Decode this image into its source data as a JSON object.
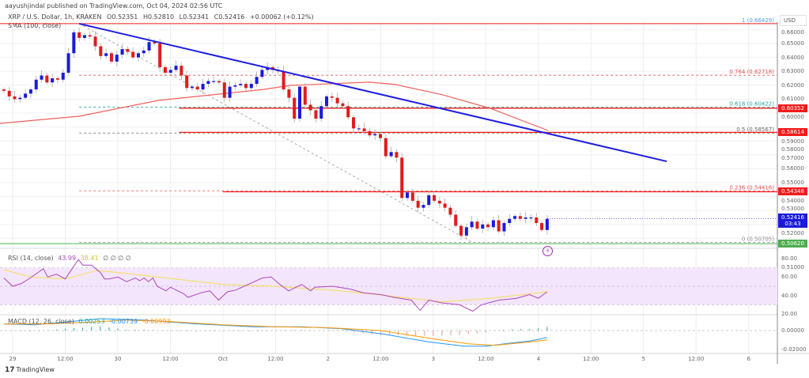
{
  "header": {
    "published": "aayushjindal published on TradingView.com, Oct 04, 2024 02:56 UTC"
  },
  "legend": {
    "symbol": "XRP / U.S. Dollar, 1h, KRAKEN",
    "open": "O0.52351",
    "high": "H0.52810",
    "low": "L0.52341",
    "close": "C0.52416",
    "change": "+0.00062 (+0.12%)",
    "sma": "SMA (100, close)"
  },
  "rsi_legend": {
    "name": "RSI (14, close)",
    "rsi": "43.99",
    "ma": "38.41",
    "extra": "∅ ∅ ∅ ∅"
  },
  "macd_legend": {
    "name": "MACD (12, 26, close)",
    "hist": "0.00253",
    "macd": "-0.00739",
    "signal": "-0.00993"
  },
  "price_axis": {
    "currency": "USD"
  },
  "footer": {
    "logo_mark": "17",
    "brand": "TradingView"
  },
  "icons": {
    "alert": "lightning-icon"
  },
  "colors": {
    "up": "#1a1adb",
    "down": "#e21b1b",
    "sma": "#f0605a",
    "trend": "#1f1fe0",
    "rsi": "#ab47bc",
    "rsi_ma": "#f5e050",
    "macd": "#2196f3",
    "signal": "#ff9800",
    "level": "#f21b1b",
    "current": "#1a1adb",
    "low_line": "#4caf50"
  },
  "chart_data": {
    "type": "candlestick",
    "title": "XRP / U.S. Dollar, 1h, KRAKEN",
    "x_unit": "hours since Sep 29 00:00",
    "x_range": [
      -2,
      172
    ],
    "ylim": [
      0.498,
      0.668
    ],
    "time_ticks": [
      {
        "h": 0,
        "label": "29"
      },
      {
        "h": 12,
        "label": "12:00"
      },
      {
        "h": 24,
        "label": "30"
      },
      {
        "h": 36,
        "label": "12:00"
      },
      {
        "h": 48,
        "label": "Oct"
      },
      {
        "h": 60,
        "label": "12:00"
      },
      {
        "h": 72,
        "label": "2"
      },
      {
        "h": 84,
        "label": "12:00"
      },
      {
        "h": 96,
        "label": "3"
      },
      {
        "h": 108,
        "label": "12:00"
      },
      {
        "h": 120,
        "label": "4"
      },
      {
        "h": 132,
        "label": "12:00"
      },
      {
        "h": 144,
        "label": "5"
      },
      {
        "h": 156,
        "label": "12:00"
      },
      {
        "h": 168,
        "label": "6"
      }
    ],
    "price_ticks": [
      "0.66000",
      "0.65000",
      "0.64000",
      "0.63000",
      "0.62000",
      "0.61000",
      "0.60000",
      "0.59000",
      "0.58000",
      "0.57000",
      "0.56000",
      "0.55000",
      "0.54000",
      "0.53000",
      "0.52000",
      "0.51000",
      "0.50000"
    ],
    "candles_start_h": -2,
    "candles_end_h": 122,
    "first_open": 0.617,
    "closes": [
      0.616,
      0.612,
      0.61,
      0.611,
      0.614,
      0.617,
      0.624,
      0.627,
      0.622,
      0.625,
      0.624,
      0.629,
      0.643,
      0.658,
      0.654,
      0.656,
      0.655,
      0.648,
      0.641,
      0.643,
      0.637,
      0.642,
      0.646,
      0.644,
      0.64,
      0.643,
      0.645,
      0.651,
      0.65,
      0.633,
      0.629,
      0.631,
      0.634,
      0.627,
      0.618,
      0.619,
      0.617,
      0.621,
      0.623,
      0.623,
      0.622,
      0.611,
      0.619,
      0.62,
      0.621,
      0.618,
      0.621,
      0.626,
      0.631,
      0.633,
      0.631,
      0.63,
      0.617,
      0.611,
      0.596,
      0.619,
      0.606,
      0.602,
      0.596,
      0.605,
      0.612,
      0.611,
      0.607,
      0.605,
      0.597,
      0.589,
      0.589,
      0.587,
      0.584,
      0.585,
      0.582,
      0.569,
      0.572,
      0.568,
      0.539,
      0.543,
      0.537,
      0.532,
      0.534,
      0.541,
      0.537,
      0.535,
      0.532,
      0.527,
      0.519,
      0.512,
      0.518,
      0.522,
      0.517,
      0.52,
      0.518,
      0.523,
      0.515,
      0.521,
      0.524,
      0.526,
      0.524,
      0.525,
      0.525,
      0.521,
      0.516,
      0.524
    ],
    "sma_100": [
      [
        -2.9,
        0.5926
      ],
      [
        15.2,
        0.5977
      ],
      [
        33.2,
        0.6091
      ],
      [
        57.2,
        0.617
      ],
      [
        63.4,
        0.6199
      ],
      [
        81.4,
        0.6222
      ],
      [
        87.4,
        0.6205
      ],
      [
        98.2,
        0.6131
      ],
      [
        109,
        0.6034
      ],
      [
        122.2,
        0.5875
      ]
    ],
    "trendline": [
      [
        15.2,
        0.6642
      ],
      [
        149.3,
        0.5653
      ]
    ],
    "fib": {
      "from": [
        15.2,
        0.66429
      ],
      "to": [
        105,
        0.50705
      ],
      "levels": [
        {
          "label": "1 (0.66429)",
          "price": 0.66429,
          "color": "#4fa3e0"
        },
        {
          "label": "0.764 (0.62718)",
          "price": 0.62718,
          "color": "#e05050"
        },
        {
          "label": "0.618 (0.60422)",
          "price": 0.60422,
          "color": "#26a69a"
        },
        {
          "label": "0.5 (0.58567)",
          "price": 0.58567,
          "color": "#666666"
        },
        {
          "label": "0.236 (0.54416)",
          "price": 0.54416,
          "color": "#e05050"
        },
        {
          "label": "0 (0.50705)",
          "price": 0.50705,
          "color": "#888888"
        }
      ]
    },
    "levels": [
      {
        "price": 0.60352,
        "label": "0.60352",
        "from_h": 38
      },
      {
        "price": 0.58614,
        "label": "0.58614",
        "from_h": 38
      },
      {
        "price": 0.54348,
        "label": "0.54348",
        "from_h": 48
      }
    ],
    "current_price": {
      "label": "0.52416",
      "countdown": "03:43",
      "price": 0.52416
    },
    "low_level": {
      "price": 0.5062,
      "label": "0.50620"
    },
    "rsi": {
      "ticks": [
        "80.00",
        "60.00",
        "40.00",
        "20.00"
      ],
      "band": [
        30,
        70
      ],
      "values": [
        [
          -2,
          59
        ],
        [
          0,
          50
        ],
        [
          2,
          53
        ],
        [
          4,
          59
        ],
        [
          7,
          69
        ],
        [
          8,
          60
        ],
        [
          10,
          63
        ],
        [
          12,
          58
        ],
        [
          15,
          79
        ],
        [
          16,
          73
        ],
        [
          18,
          73
        ],
        [
          20,
          65
        ],
        [
          21,
          58
        ],
        [
          22,
          58
        ],
        [
          24,
          60
        ],
        [
          26,
          55
        ],
        [
          28,
          59
        ],
        [
          29,
          56
        ],
        [
          30,
          59
        ],
        [
          31,
          55
        ],
        [
          32,
          59
        ],
        [
          33,
          50
        ],
        [
          35,
          45
        ],
        [
          36,
          49
        ],
        [
          39,
          42
        ],
        [
          40,
          38
        ],
        [
          43,
          43
        ],
        [
          45,
          45
        ],
        [
          47,
          35
        ],
        [
          49,
          44
        ],
        [
          51,
          46
        ],
        [
          57,
          59
        ],
        [
          59,
          60
        ],
        [
          61,
          52
        ],
        [
          63,
          45
        ],
        [
          66,
          52
        ],
        [
          68,
          45
        ],
        [
          69,
          49
        ],
        [
          73,
          50
        ],
        [
          77,
          47
        ],
        [
          80,
          43
        ],
        [
          84,
          41
        ],
        [
          87,
          38
        ],
        [
          91,
          35
        ],
        [
          93,
          24
        ],
        [
          95,
          35
        ],
        [
          98,
          32
        ],
        [
          102,
          30
        ],
        [
          105,
          23
        ],
        [
          107,
          30
        ],
        [
          111,
          35
        ],
        [
          115,
          37
        ],
        [
          118,
          41
        ],
        [
          120,
          37
        ],
        [
          122,
          44
        ]
      ],
      "ma": [
        [
          -2,
          68
        ],
        [
          4,
          60
        ],
        [
          12,
          58
        ],
        [
          19,
          67
        ],
        [
          24,
          65
        ],
        [
          33,
          60
        ],
        [
          48,
          52
        ],
        [
          60,
          50
        ],
        [
          75,
          45
        ],
        [
          87,
          39
        ],
        [
          98,
          33
        ],
        [
          109,
          37
        ],
        [
          122,
          44
        ]
      ]
    },
    "macd": {
      "ticks": [
        "0.00000",
        "-0.02000"
      ],
      "macd": [
        [
          -2,
          0.007
        ],
        [
          5,
          0.006
        ],
        [
          12,
          0.009
        ],
        [
          20,
          0.0125
        ],
        [
          30,
          0.011
        ],
        [
          42,
          0.007
        ],
        [
          55,
          0.004
        ],
        [
          66,
          0.004
        ],
        [
          75,
          0.002
        ],
        [
          85,
          -0.004
        ],
        [
          95,
          -0.012
        ],
        [
          103,
          -0.0165
        ],
        [
          108,
          -0.0165
        ],
        [
          114,
          -0.013
        ],
        [
          118,
          -0.011
        ],
        [
          122,
          -0.0074
        ]
      ],
      "signal": [
        [
          -2,
          0.007
        ],
        [
          8,
          0.007
        ],
        [
          18,
          0.009
        ],
        [
          26,
          0.011
        ],
        [
          36,
          0.0095
        ],
        [
          48,
          0.006
        ],
        [
          60,
          0.004
        ],
        [
          72,
          0.003
        ],
        [
          84,
          0.0
        ],
        [
          95,
          -0.008
        ],
        [
          104,
          -0.014
        ],
        [
          110,
          -0.0155
        ],
        [
          116,
          -0.013
        ],
        [
          122,
          -0.0099
        ]
      ]
    }
  }
}
